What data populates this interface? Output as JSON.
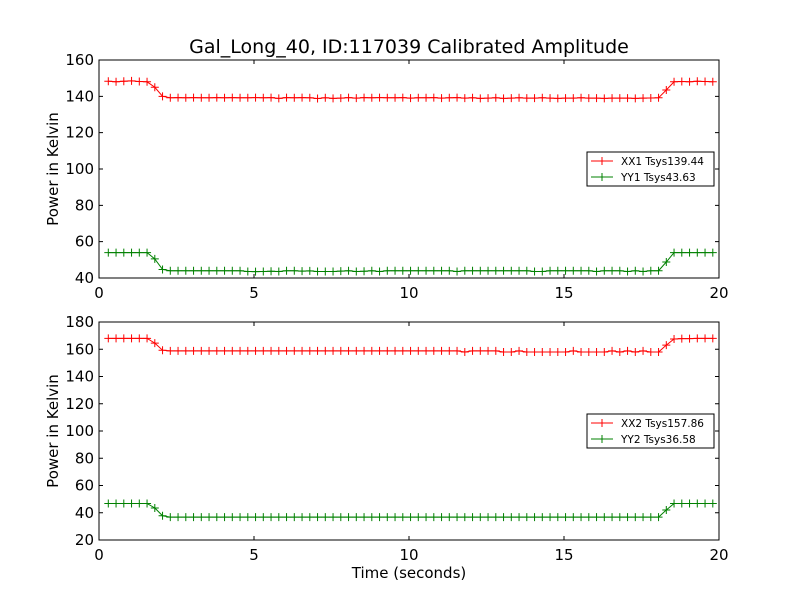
{
  "figure": {
    "title": "Gal_Long_40, ID:117039 Calibrated Amplitude"
  },
  "chart_data": [
    {
      "type": "line",
      "xlabel": "",
      "ylabel": "Power in Kelvin",
      "xlim": [
        0,
        20
      ],
      "ylim": [
        40,
        160
      ],
      "xticks": [
        0,
        5,
        10,
        15,
        20
      ],
      "yticks": [
        40,
        60,
        80,
        100,
        120,
        140,
        160
      ],
      "legend_position": "right",
      "series": [
        {
          "name": "XX1 Tsys139.44",
          "color": "#ff0000",
          "x": [
            0.3,
            0.55,
            0.8,
            1.05,
            1.3,
            1.55,
            1.8,
            2.05,
            2.3,
            2.55,
            2.8,
            3.05,
            3.3,
            3.55,
            3.8,
            4.05,
            4.3,
            4.55,
            4.8,
            5.05,
            5.3,
            5.55,
            5.8,
            6.05,
            6.3,
            6.55,
            6.8,
            7.05,
            7.3,
            7.55,
            7.8,
            8.05,
            8.3,
            8.55,
            8.8,
            9.05,
            9.3,
            9.55,
            9.8,
            10.05,
            10.3,
            10.55,
            10.8,
            11.05,
            11.3,
            11.55,
            11.8,
            12.05,
            12.3,
            12.55,
            12.8,
            13.05,
            13.3,
            13.55,
            13.8,
            14.05,
            14.3,
            14.55,
            14.8,
            15.05,
            15.3,
            15.55,
            15.8,
            16.05,
            16.3,
            16.55,
            16.8,
            17.05,
            17.3,
            17.55,
            17.8,
            18.05,
            18.3,
            18.55,
            18.8,
            19.05,
            19.3,
            19.55,
            19.8
          ],
          "values": [
            148.3,
            148.0,
            148.3,
            148.5,
            148.2,
            148.0,
            145.0,
            140.0,
            139.2,
            139.3,
            139.2,
            139.3,
            139.2,
            139.2,
            139.3,
            139.2,
            139.3,
            139.2,
            139.2,
            139.3,
            139.2,
            139.3,
            138.9,
            139.3,
            139.2,
            139.3,
            139.2,
            138.8,
            139.2,
            138.9,
            139.0,
            139.3,
            139.0,
            139.3,
            139.2,
            139.3,
            139.2,
            139.2,
            139.3,
            139.0,
            139.2,
            139.2,
            139.3,
            139.0,
            139.2,
            139.3,
            139.0,
            139.2,
            138.9,
            139.0,
            139.2,
            138.9,
            139.0,
            139.2,
            139.0,
            139.0,
            139.2,
            139.0,
            138.9,
            139.0,
            139.0,
            139.2,
            139.0,
            139.0,
            138.9,
            139.0,
            139.0,
            139.0,
            138.9,
            139.0,
            139.1,
            139.2,
            143.5,
            148.0,
            148.2,
            148.0,
            148.3,
            148.2,
            148.0
          ]
        },
        {
          "name": "YY1 Tsys43.63",
          "color": "#008000",
          "x": [
            0.3,
            0.55,
            0.8,
            1.05,
            1.3,
            1.55,
            1.8,
            2.05,
            2.3,
            2.55,
            2.8,
            3.05,
            3.3,
            3.55,
            3.8,
            4.05,
            4.3,
            4.55,
            4.8,
            5.05,
            5.3,
            5.55,
            5.8,
            6.05,
            6.3,
            6.55,
            6.8,
            7.05,
            7.3,
            7.55,
            7.8,
            8.05,
            8.3,
            8.55,
            8.8,
            9.05,
            9.3,
            9.55,
            9.8,
            10.05,
            10.3,
            10.55,
            10.8,
            11.05,
            11.3,
            11.55,
            11.8,
            12.05,
            12.3,
            12.55,
            12.8,
            13.05,
            13.3,
            13.55,
            13.8,
            14.05,
            14.3,
            14.55,
            14.8,
            15.05,
            15.3,
            15.55,
            15.8,
            16.05,
            16.3,
            16.55,
            16.8,
            17.05,
            17.3,
            17.55,
            17.8,
            18.05,
            18.3,
            18.55,
            18.8,
            19.05,
            19.3,
            19.55,
            19.8
          ],
          "values": [
            54.0,
            54.0,
            54.0,
            54.0,
            54.0,
            54.0,
            50.5,
            44.7,
            44.0,
            44.0,
            44.0,
            44.0,
            44.0,
            44.0,
            44.0,
            44.0,
            44.0,
            44.0,
            43.6,
            43.5,
            43.6,
            43.7,
            43.6,
            44.0,
            44.0,
            43.8,
            43.9,
            43.6,
            43.6,
            43.6,
            43.8,
            44.0,
            43.6,
            43.7,
            44.0,
            43.6,
            44.0,
            44.0,
            44.0,
            44.0,
            44.0,
            44.0,
            44.0,
            44.0,
            44.0,
            43.6,
            44.0,
            44.0,
            44.0,
            44.0,
            44.0,
            44.0,
            44.0,
            44.0,
            44.0,
            43.6,
            43.6,
            44.0,
            44.0,
            44.0,
            44.0,
            44.0,
            44.0,
            43.6,
            44.0,
            44.0,
            44.0,
            43.6,
            44.0,
            43.6,
            44.0,
            44.0,
            48.8,
            54.0,
            54.0,
            54.0,
            54.0,
            54.0,
            54.0
          ]
        }
      ]
    },
    {
      "type": "line",
      "xlabel": "Time (seconds)",
      "ylabel": "Power in Kelvin",
      "xlim": [
        0,
        20
      ],
      "ylim": [
        20,
        180
      ],
      "xticks": [
        0,
        5,
        10,
        15,
        20
      ],
      "yticks": [
        20,
        40,
        60,
        80,
        100,
        120,
        140,
        160,
        180
      ],
      "legend_position": "right",
      "series": [
        {
          "name": "XX2 Tsys157.86",
          "color": "#ff0000",
          "x": [
            0.3,
            0.55,
            0.8,
            1.05,
            1.3,
            1.55,
            1.8,
            2.05,
            2.3,
            2.55,
            2.8,
            3.05,
            3.3,
            3.55,
            3.8,
            4.05,
            4.3,
            4.55,
            4.8,
            5.05,
            5.3,
            5.55,
            5.8,
            6.05,
            6.3,
            6.55,
            6.8,
            7.05,
            7.3,
            7.55,
            7.8,
            8.05,
            8.3,
            8.55,
            8.8,
            9.05,
            9.3,
            9.55,
            9.8,
            10.05,
            10.3,
            10.55,
            10.8,
            11.05,
            11.3,
            11.55,
            11.8,
            12.05,
            12.3,
            12.55,
            12.8,
            13.05,
            13.3,
            13.55,
            13.8,
            14.05,
            14.3,
            14.55,
            14.8,
            15.05,
            15.3,
            15.55,
            15.8,
            16.05,
            16.3,
            16.55,
            16.8,
            17.05,
            17.3,
            17.55,
            17.8,
            18.05,
            18.3,
            18.55,
            18.8,
            19.05,
            19.3,
            19.55,
            19.8
          ],
          "values": [
            168.0,
            168.0,
            168.0,
            168.0,
            168.0,
            168.0,
            164.5,
            159.3,
            158.8,
            158.8,
            158.8,
            158.8,
            158.8,
            158.8,
            158.8,
            158.8,
            158.8,
            158.8,
            158.8,
            158.8,
            158.8,
            158.8,
            158.8,
            158.8,
            158.8,
            158.8,
            158.8,
            158.8,
            158.8,
            158.8,
            158.8,
            158.8,
            158.8,
            158.8,
            158.8,
            158.8,
            158.8,
            158.8,
            158.8,
            158.8,
            158.8,
            158.8,
            158.8,
            158.8,
            158.8,
            158.8,
            158.0,
            158.8,
            158.8,
            158.8,
            158.8,
            158.0,
            158.0,
            158.8,
            158.0,
            158.0,
            158.0,
            158.0,
            158.0,
            158.0,
            158.8,
            158.0,
            158.0,
            158.0,
            158.0,
            158.8,
            158.0,
            158.8,
            158.0,
            158.8,
            158.0,
            158.0,
            163.0,
            167.5,
            167.8,
            167.8,
            168.0,
            168.0,
            168.0
          ]
        },
        {
          "name": "YY2 Tsys36.58",
          "color": "#008000",
          "x": [
            0.3,
            0.55,
            0.8,
            1.05,
            1.3,
            1.55,
            1.8,
            2.05,
            2.3,
            2.55,
            2.8,
            3.05,
            3.3,
            3.55,
            3.8,
            4.05,
            4.3,
            4.55,
            4.8,
            5.05,
            5.3,
            5.55,
            5.8,
            6.05,
            6.3,
            6.55,
            6.8,
            7.05,
            7.3,
            7.55,
            7.8,
            8.05,
            8.3,
            8.55,
            8.8,
            9.05,
            9.3,
            9.55,
            9.8,
            10.05,
            10.3,
            10.55,
            10.8,
            11.05,
            11.3,
            11.55,
            11.8,
            12.05,
            12.3,
            12.55,
            12.8,
            13.05,
            13.3,
            13.55,
            13.8,
            14.05,
            14.3,
            14.55,
            14.8,
            15.05,
            15.3,
            15.55,
            15.8,
            16.05,
            16.3,
            16.55,
            16.8,
            17.05,
            17.3,
            17.55,
            17.8,
            18.05,
            18.3,
            18.55,
            18.8,
            19.05,
            19.3,
            19.55,
            19.8
          ],
          "values": [
            46.8,
            46.8,
            46.8,
            46.8,
            46.8,
            46.8,
            43.5,
            37.8,
            36.8,
            36.8,
            36.8,
            36.8,
            36.8,
            36.8,
            36.8,
            36.8,
            36.8,
            36.8,
            36.8,
            36.8,
            36.8,
            36.8,
            36.8,
            36.8,
            36.8,
            36.8,
            36.8,
            36.8,
            36.8,
            36.8,
            36.8,
            36.8,
            36.8,
            36.8,
            36.8,
            36.8,
            36.8,
            36.8,
            36.8,
            36.8,
            36.8,
            36.8,
            36.8,
            36.8,
            36.8,
            36.8,
            36.8,
            36.8,
            36.8,
            36.8,
            36.8,
            36.8,
            36.8,
            36.8,
            36.8,
            36.8,
            36.8,
            36.8,
            36.8,
            36.8,
            36.8,
            36.8,
            36.8,
            36.8,
            36.8,
            36.8,
            36.8,
            36.8,
            36.8,
            36.8,
            36.8,
            36.8,
            42.0,
            46.8,
            46.8,
            46.8,
            46.8,
            46.8,
            46.8
          ]
        }
      ]
    }
  ]
}
